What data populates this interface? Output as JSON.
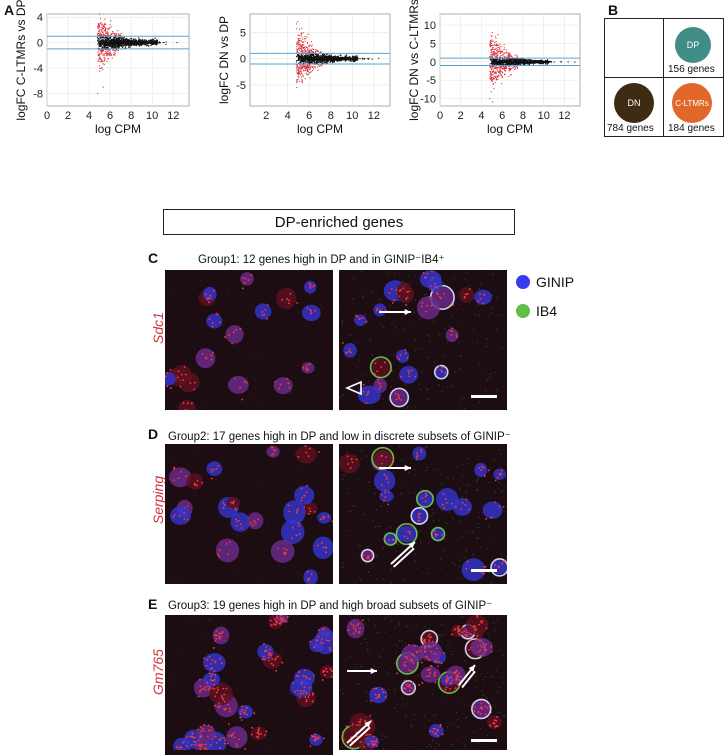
{
  "panel_labels": {
    "A": "A",
    "B": "B",
    "C": "C",
    "D": "D",
    "E": "E"
  },
  "colors": {
    "accent_line": "#5ba4cf",
    "black_points": "#111111",
    "red_points": "#d6303a",
    "dp": "#3f8d86",
    "dn": "#3f2b14",
    "cltmr": "#e2672a",
    "ginip": "#3a3af0",
    "ib4": "#5fbf49"
  },
  "chart_data": [
    {
      "type": "scatter",
      "title": "",
      "xlabel": "log CPM",
      "ylabel": "logFC C-LTMRs vs DP",
      "xlim": [
        0,
        13.5
      ],
      "ylim": [
        -10,
        4.5
      ],
      "xticks": [
        "0",
        "2",
        "4",
        "6",
        "8",
        "10",
        "12"
      ],
      "yticks": [
        "4",
        "0",
        "-4",
        "-8"
      ],
      "thresholds": [
        1,
        -1
      ]
    },
    {
      "type": "scatter",
      "title": "",
      "xlabel": "log CPM",
      "ylabel": "logFC DN vs DP",
      "xlim": [
        0.5,
        13.5
      ],
      "ylim": [
        -9,
        8.5
      ],
      "xticks": [
        "2",
        "4",
        "6",
        "8",
        "10",
        "12"
      ],
      "yticks": [
        "5",
        "0",
        "-5"
      ],
      "thresholds": [
        1,
        -1
      ]
    },
    {
      "type": "scatter",
      "title": "",
      "xlabel": "log CPM",
      "ylabel": "logFC DN vs C-LTMRs",
      "xlim": [
        0,
        13.5
      ],
      "ylim": [
        -12,
        13
      ],
      "xticks": [
        "0",
        "2",
        "4",
        "6",
        "8",
        "10",
        "12"
      ],
      "yticks": [
        "10",
        "5",
        "0",
        "-5",
        "-10"
      ],
      "thresholds": [
        1,
        -1
      ]
    }
  ],
  "venn": {
    "dp_label": "DP",
    "dp_genes": "156 genes",
    "dn_label": "DN",
    "dn_genes": "784 genes",
    "cltmr_label": "C-LTMRs",
    "cltmr_genes": "184 genes"
  },
  "dp_box_title": "DP-enriched genes",
  "groups": [
    {
      "title": "Group1: 12 genes  high in DP and in GINIP⁻IB4⁺",
      "gene": "Sdc1"
    },
    {
      "title": "Group2: 17 genes  high in DP and low in discrete subsets of GINIP⁻",
      "gene": "Serping"
    },
    {
      "title": "Group3: 19 genes  high in DP and high broad subsets of GINIP⁻",
      "gene": "Gm765"
    }
  ],
  "legend": {
    "ginip": "GINIP",
    "ib4": "IB4"
  }
}
